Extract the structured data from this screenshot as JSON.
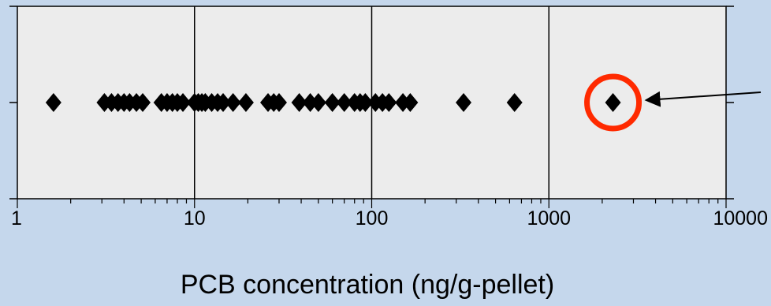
{
  "chart_data": {
    "type": "scatter",
    "title": "",
    "xlabel": "PCB concentration (ng/g-pellet)",
    "ylabel": "",
    "x_scale": "log",
    "xlim": [
      1,
      10000
    ],
    "x_tick_labels": [
      "1",
      "10",
      "100",
      "1000",
      "10000"
    ],
    "grid": "vertical lines at decades",
    "legend": "none",
    "marker": "diamond",
    "series": [
      {
        "x": [
          1.6,
          3.1,
          3.4,
          3.7,
          4.0,
          4.3,
          4.7,
          5.1,
          6.5,
          7.0,
          7.5,
          8.0,
          8.6,
          10.0,
          10.5,
          11.0,
          11.5,
          12.5,
          13.5,
          14.5,
          16.5,
          19.5,
          26.0,
          28.0,
          30.0,
          39.0,
          45.0,
          50.0,
          60.0,
          70.0,
          80.0,
          86.0,
          92.0,
          105.0,
          115.0,
          125.0,
          150.0,
          165.0,
          330.0,
          640.0,
          2300.0
        ]
      }
    ],
    "annotation": {
      "type": "arrow-and-circle",
      "target_x": 2300.0
    },
    "colors": {
      "background": "#c5d7ec",
      "plot_area": "#ececec",
      "marker": "#000000",
      "highlight_circle": "#ff2a00",
      "arrow": "#000000"
    }
  }
}
